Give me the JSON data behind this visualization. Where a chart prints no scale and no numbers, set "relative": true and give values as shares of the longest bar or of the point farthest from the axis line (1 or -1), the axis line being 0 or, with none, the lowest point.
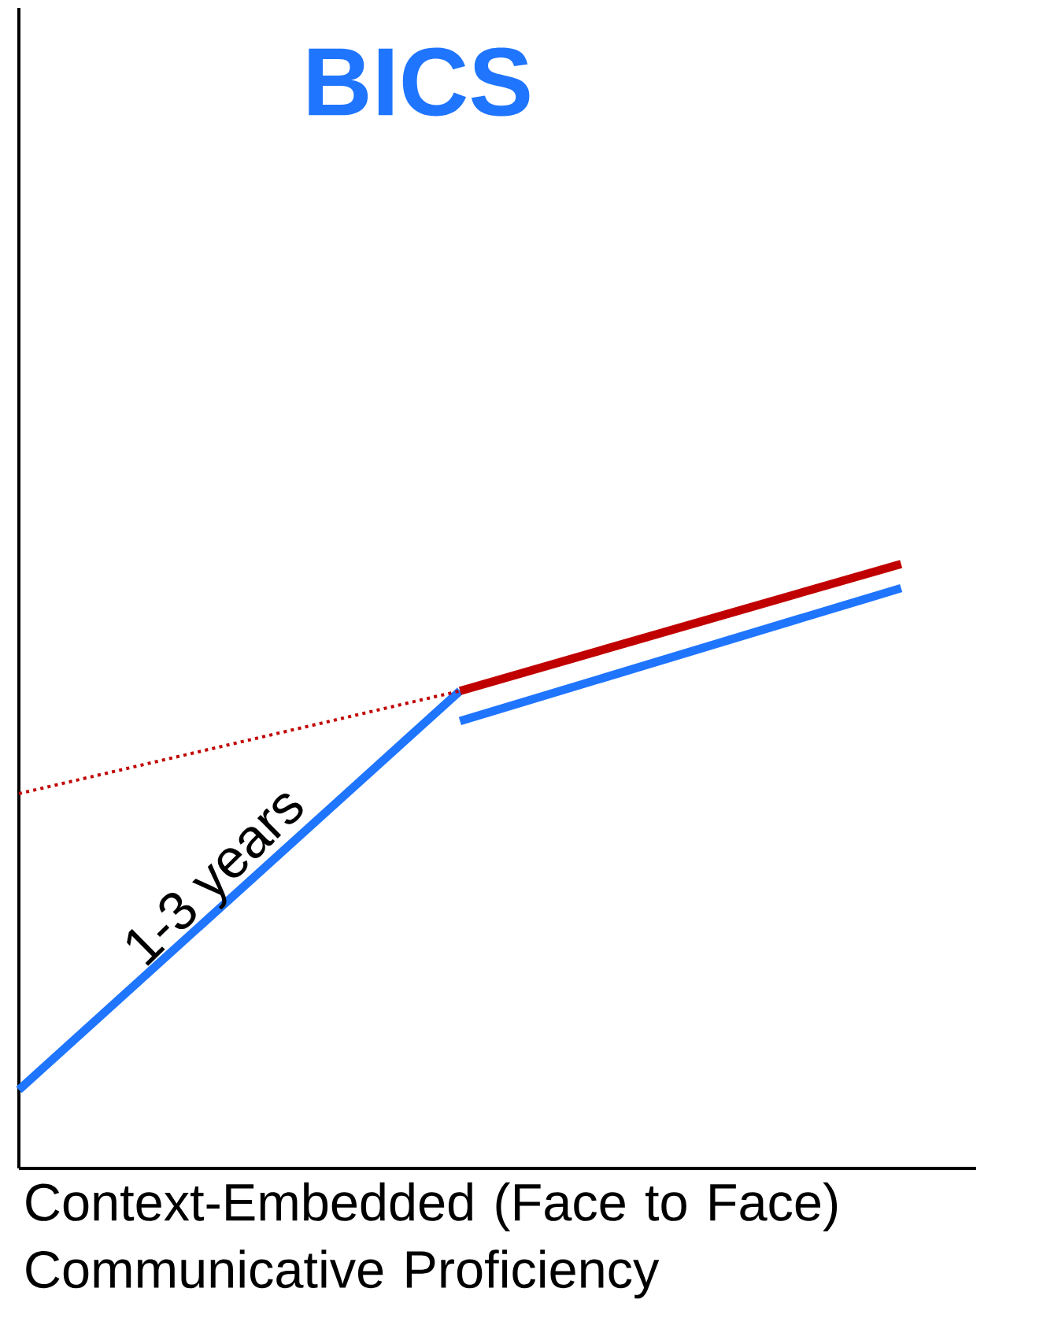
{
  "chart_data": {
    "type": "line",
    "title": "BICS",
    "xlabel": "Context-Embedded (Face to Face) Communicative Proficiency",
    "relative": true,
    "categories": [
      null,
      null,
      null
    ],
    "series": [
      {
        "color": "#1f75fe",
        "values": [
          0.13,
          0.79,
          null
        ]
      },
      {
        "color": "#1f75fe",
        "values": [
          null,
          0.74,
          0.96
        ]
      },
      {
        "color": "#c00000",
        "values": [
          null,
          0.79,
          1
        ]
      },
      {
        "color": "#c00000",
        "values": [
          0.62,
          0.79,
          null
        ],
        "line_style": "dotted"
      }
    ],
    "annotations": [
      "1-3 years"
    ]
  }
}
